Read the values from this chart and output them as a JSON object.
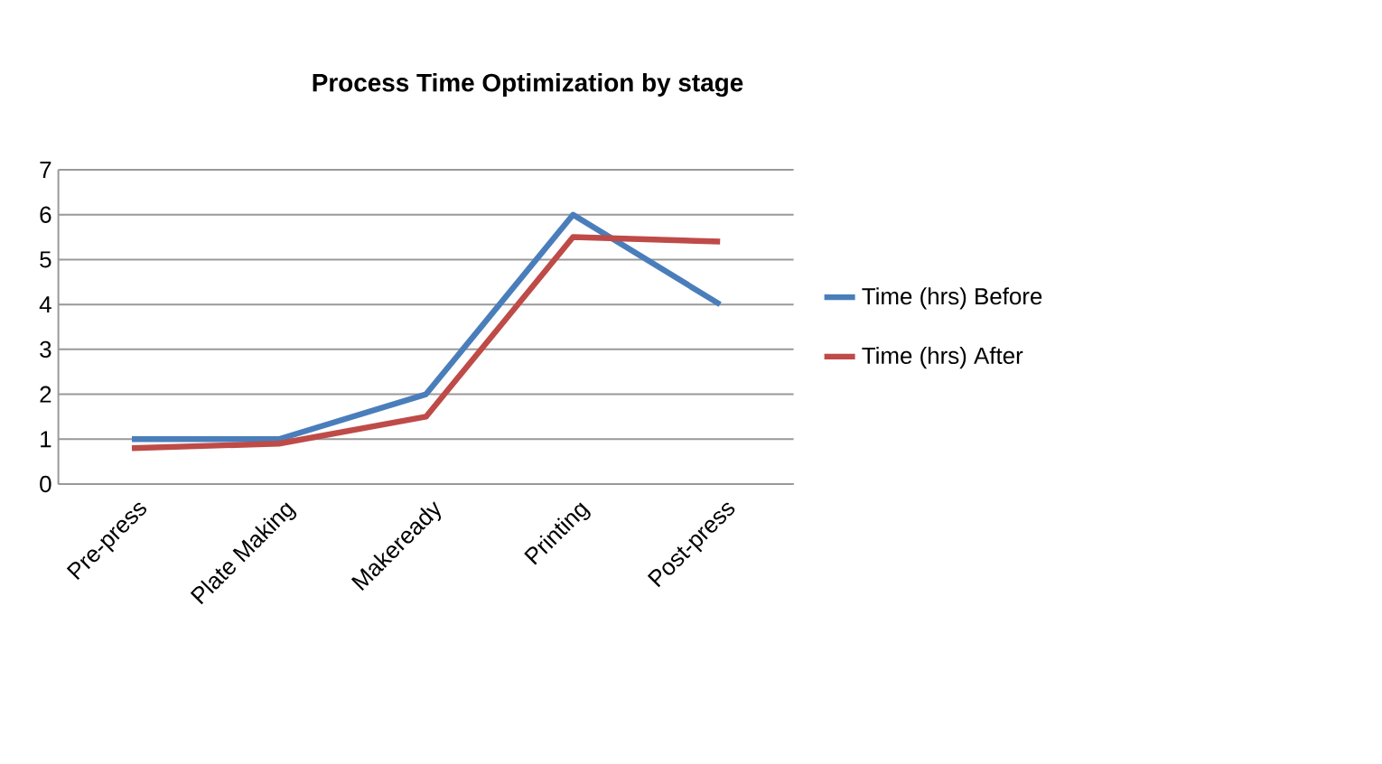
{
  "chart_data": {
    "type": "line",
    "title": "Process Time Optimization by stage",
    "categories": [
      "Pre-press",
      "Plate Making",
      "Makeready",
      "Printing",
      "Post-press"
    ],
    "series": [
      {
        "name": "Time (hrs) Before",
        "color": "#4a7ebb",
        "values": [
          1,
          1,
          2,
          6,
          4
        ]
      },
      {
        "name": "Time (hrs) After",
        "color": "#be4b48",
        "values": [
          0.8,
          0.9,
          1.5,
          5.5,
          5.4
        ]
      }
    ],
    "ylim": [
      0,
      7
    ],
    "yticks": [
      0,
      1,
      2,
      3,
      4,
      5,
      6,
      7
    ],
    "grid": "y",
    "legend": "right",
    "marker": "none",
    "line_style": "solid"
  }
}
